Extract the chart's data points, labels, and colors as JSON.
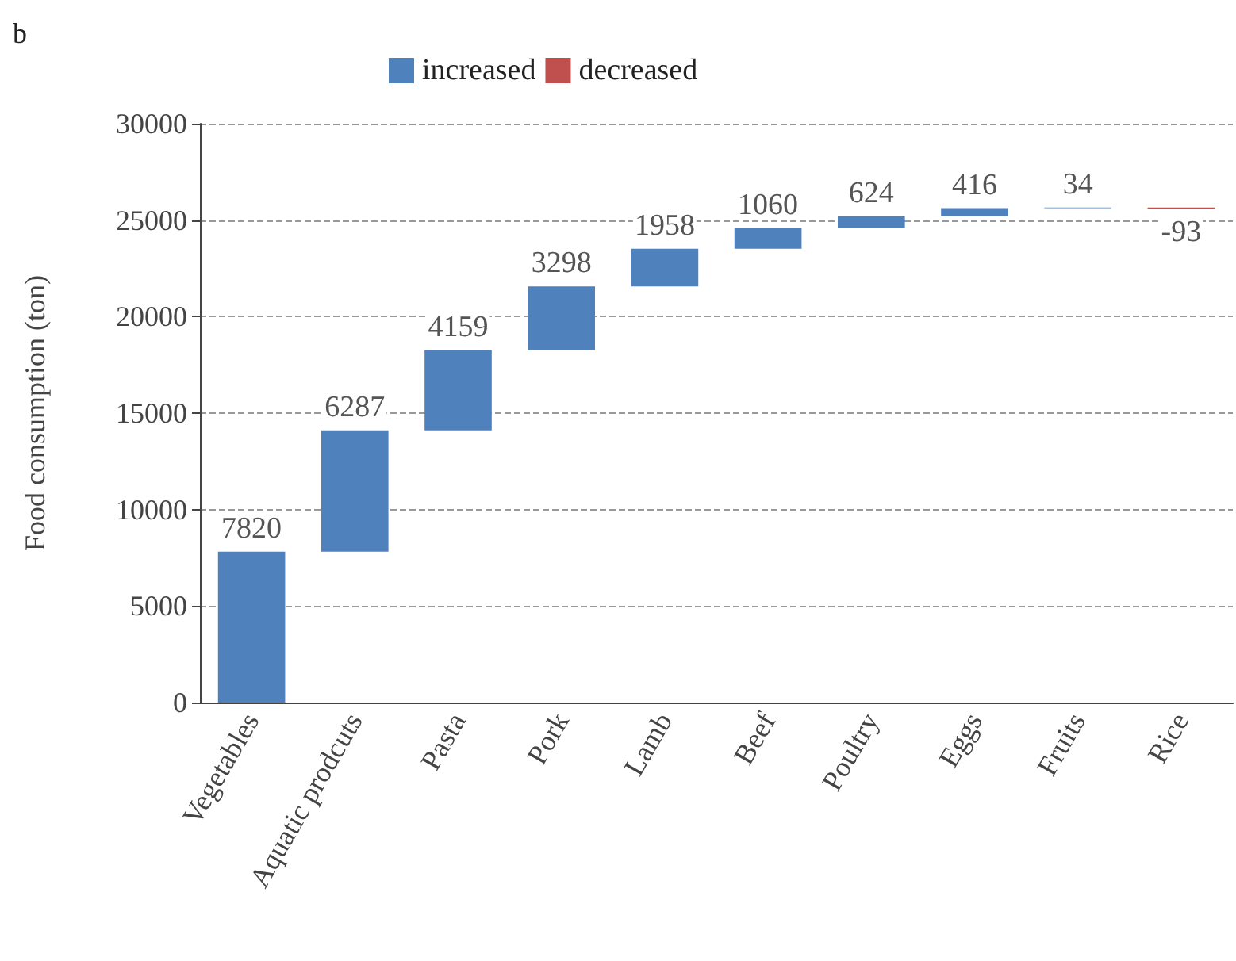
{
  "chart_data": {
    "type": "bar",
    "annotations": [
      "b"
    ],
    "ylabel": "Food consumption (ton)",
    "categories": [
      "Vegetables",
      "Aquatic prodcuts",
      "Pasta",
      "Pork",
      "Lamb",
      "Beef",
      "Poultry",
      "Eggs",
      "Fruits",
      "Rice"
    ],
    "series": [
      {
        "name": "increased",
        "color": "#4f81bd",
        "values": [
          7820,
          6287,
          4159,
          3298,
          1958,
          1060,
          624,
          416,
          34,
          null
        ],
        "base": [
          0,
          7820,
          14107,
          18266,
          21564,
          23522,
          24582,
          25206,
          25622,
          null
        ]
      },
      {
        "name": "decreased",
        "color": "#c0504d",
        "values": [
          null,
          null,
          null,
          null,
          null,
          null,
          null,
          null,
          null,
          -93
        ],
        "base": [
          null,
          null,
          null,
          null,
          null,
          null,
          null,
          null,
          null,
          25656
        ]
      }
    ],
    "data_labels": true,
    "ylim": [
      0,
      30000
    ],
    "yticks": [
      0,
      5000,
      10000,
      15000,
      20000,
      25000,
      30000
    ],
    "grid": "y",
    "legend": "top"
  }
}
